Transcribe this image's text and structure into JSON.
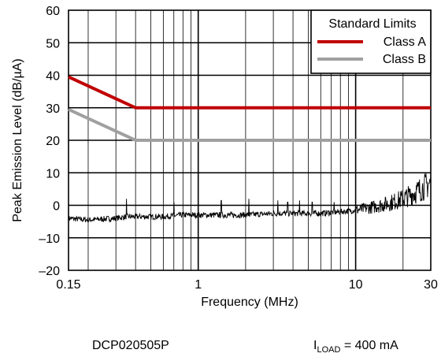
{
  "chart_data": {
    "type": "line",
    "xlabel": "Frequency (MHz)",
    "ylabel": "Peak Emission Level (dB/µA)",
    "xscale": "log",
    "xlim": [
      0.15,
      30
    ],
    "ylim": [
      -20,
      60
    ],
    "x_ticks": [
      0.15,
      1,
      10,
      30
    ],
    "x_tick_labels": [
      "0.15",
      "1",
      "10",
      "30"
    ],
    "y_ticks": [
      -20,
      -10,
      0,
      10,
      20,
      30,
      40,
      50,
      60
    ],
    "y_tick_labels": [
      "–20",
      "–10",
      "0",
      "10",
      "20",
      "30",
      "40",
      "50",
      "60"
    ],
    "grid": true,
    "legend": {
      "title": "Standard Limits",
      "placement": "top-right",
      "entries": [
        "Class A",
        "Class B"
      ]
    },
    "series": [
      {
        "name": "Class A",
        "color": "#c00000",
        "x": [
          0.15,
          0.4,
          30
        ],
        "y": [
          39.5,
          30,
          30
        ]
      },
      {
        "name": "Class B",
        "color": "#a0a0a0",
        "x": [
          0.15,
          0.4,
          30
        ],
        "y": [
          29.5,
          20,
          20
        ]
      },
      {
        "color": "#000000",
        "x": [
          0.15,
          0.2,
          0.3,
          0.35,
          0.45,
          0.6,
          0.8,
          1,
          1.5,
          2,
          3,
          4,
          5,
          6,
          8,
          10,
          13,
          16,
          20,
          24,
          28,
          30
        ],
        "y": [
          -4,
          -4.5,
          -4,
          -3.5,
          -3.5,
          -3.5,
          -3,
          -3,
          -3,
          -3,
          -2.5,
          -2.5,
          -2.5,
          -2.5,
          -2,
          -1.5,
          -0.5,
          0.5,
          2,
          4,
          6,
          7
        ],
        "spikes": [
          {
            "x": 0.35,
            "y": 2
          },
          {
            "x": 0.7,
            "y": 1
          },
          {
            "x": 1.4,
            "y": 1.5
          },
          {
            "x": 2.1,
            "y": 2
          },
          {
            "x": 3.2,
            "y": 1.5
          },
          {
            "x": 3.7,
            "y": 1
          },
          {
            "x": 4.4,
            "y": 1.5
          },
          {
            "x": 5.3,
            "y": 1
          },
          {
            "x": 7.3,
            "y": 1
          }
        ]
      }
    ]
  },
  "footer": {
    "part_number": "DCP020505P",
    "load_main": "I",
    "load_sub": "LOAD",
    "load_value": " = 400 mA"
  }
}
